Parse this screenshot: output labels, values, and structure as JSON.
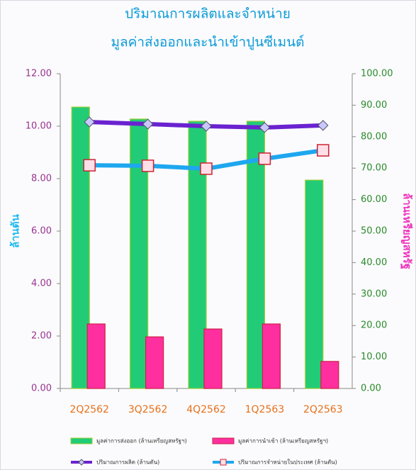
{
  "chart_data": {
    "type": "bar_line",
    "title": "ปริมาณการผลิตและจำหน่าย",
    "subtitle": "มูลค่าส่งออกและนำเข้าปูนซีเมนต์",
    "y_label": "ล้านตัน",
    "y2_label": "ล้านเหรียญสหรัฐ",
    "categories": [
      "2Q2562",
      "3Q2562",
      "4Q2562",
      "1Q2563",
      "2Q2563"
    ],
    "series": [
      {
        "name": "มูลค่าการส่งออก (ล้านเหรียญสหรัฐฯ)",
        "type": "bar",
        "axis": "y2",
        "color": "#22cc77",
        "values": [
          89.4,
          85.6,
          84.9,
          84.9,
          66.2
        ]
      },
      {
        "name": "มูลค่าการนำเข้า (ล้านเหรียญสหรัฐฯ)",
        "type": "bar",
        "axis": "y2",
        "color": "#ff2fa0",
        "values": [
          20.5,
          16.4,
          18.9,
          20.5,
          8.6
        ]
      },
      {
        "name": "ปริมาณการผลิต (ล้านตัน)",
        "type": "line",
        "axis": "y",
        "color": "#6a22d0",
        "values": [
          10.16,
          10.08,
          10.0,
          9.95,
          10.03
        ]
      },
      {
        "name": "ปริมาณการจำหน่ายในประเทศ (ล้านตัน)",
        "type": "line",
        "axis": "y",
        "color": "#1ea7ef",
        "values": [
          8.51,
          8.49,
          8.38,
          8.76,
          9.08
        ]
      }
    ],
    "ylim": [
      0,
      12
    ],
    "yticks": [
      {
        "value": 0,
        "label": "0.00"
      },
      {
        "value": 2,
        "label": "2.00"
      },
      {
        "value": 4,
        "label": "4.00"
      },
      {
        "value": 6,
        "label": "6.00"
      },
      {
        "value": 8,
        "label": "8.00"
      },
      {
        "value": 10,
        "label": "10.00"
      },
      {
        "value": 12,
        "label": "12.00"
      }
    ],
    "y2lim": [
      0,
      100
    ],
    "y2ticks": [
      {
        "value": 0,
        "label": "0.00"
      },
      {
        "value": 10,
        "label": "10.00"
      },
      {
        "value": 20,
        "label": "20.00"
      },
      {
        "value": 30,
        "label": "30.00"
      },
      {
        "value": 40,
        "label": "40.00"
      },
      {
        "value": 50,
        "label": "50.00"
      },
      {
        "value": 60,
        "label": "60.00"
      },
      {
        "value": 70,
        "label": "70.00"
      },
      {
        "value": 80,
        "label": "80.00"
      },
      {
        "value": 90,
        "label": "90.00"
      },
      {
        "value": 100,
        "label": "100.00"
      }
    ],
    "grid": false
  }
}
